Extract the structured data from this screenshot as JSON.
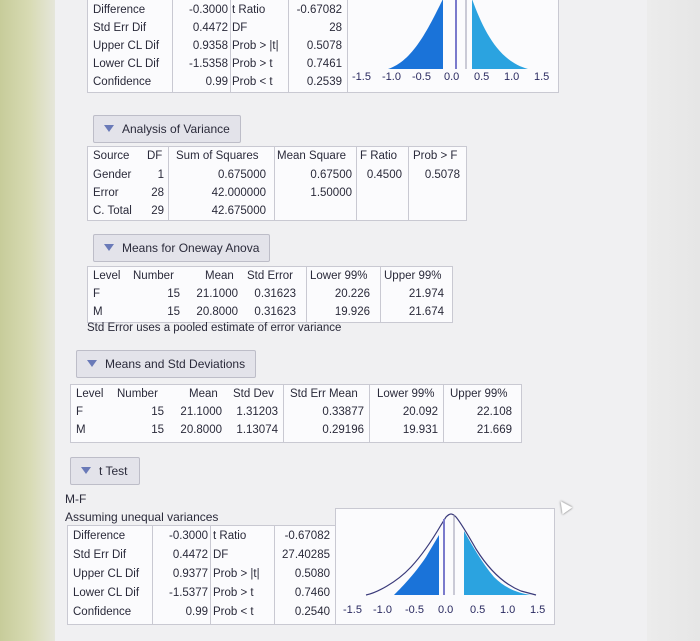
{
  "top_ttest": {
    "rows": [
      {
        "label": "Difference",
        "value": "-0.3000",
        "stat": "t Ratio",
        "stat_value": "-0.67082"
      },
      {
        "label": "Std Err Dif",
        "value": "0.4472",
        "stat": "DF",
        "stat_value": "28"
      },
      {
        "label": "Upper CL Dif",
        "value": "0.9358",
        "stat": "Prob > |t|",
        "stat_value": "0.5078"
      },
      {
        "label": "Lower CL Dif",
        "value": "-1.5358",
        "stat": "Prob > t",
        "stat_value": "0.7461"
      },
      {
        "label": "Confidence",
        "value": "0.99",
        "stat": "Prob < t",
        "stat_value": "0.2539"
      }
    ],
    "axis_ticks": [
      "-1.5",
      "-1.0",
      "-0.5",
      "0.0",
      "0.5",
      "1.0",
      "1.5"
    ]
  },
  "anova": {
    "title": "Analysis of Variance",
    "headers": [
      "Source",
      "DF",
      "Sum of Squares",
      "Mean Square",
      "F Ratio",
      "Prob > F"
    ],
    "rows": [
      [
        "Gender",
        "1",
        "0.675000",
        "0.67500",
        "0.4500",
        "0.5078"
      ],
      [
        "Error",
        "28",
        "42.000000",
        "1.50000",
        "",
        ""
      ],
      [
        "C. Total",
        "29",
        "42.675000",
        "",
        "",
        ""
      ]
    ]
  },
  "means_oneway": {
    "title": "Means for Oneway Anova",
    "headers": [
      "Level",
      "Number",
      "Mean",
      "Std Error",
      "Lower 99%",
      "Upper 99%"
    ],
    "rows": [
      [
        "F",
        "15",
        "21.1000",
        "0.31623",
        "20.226",
        "21.974"
      ],
      [
        "M",
        "15",
        "20.8000",
        "0.31623",
        "19.926",
        "21.674"
      ]
    ],
    "note": "Std Error uses a pooled estimate of error variance"
  },
  "means_std": {
    "title": "Means and Std Deviations",
    "headers": [
      "Level",
      "Number",
      "Mean",
      "Std Dev",
      "Std Err Mean",
      "Lower 99%",
      "Upper 99%"
    ],
    "rows": [
      [
        "F",
        "15",
        "21.1000",
        "1.31203",
        "0.33877",
        "20.092",
        "22.108"
      ],
      [
        "M",
        "15",
        "20.8000",
        "1.13074",
        "0.29196",
        "19.931",
        "21.669"
      ]
    ]
  },
  "ttest": {
    "title": "t Test",
    "comparison": "M-F",
    "assumption": "Assuming unequal variances",
    "rows": [
      {
        "label": "Difference",
        "value": "-0.3000",
        "stat": "t Ratio",
        "stat_value": "-0.67082"
      },
      {
        "label": "Std Err Dif",
        "value": "0.4472",
        "stat": "DF",
        "stat_value": "27.40285"
      },
      {
        "label": "Upper CL Dif",
        "value": "0.9377",
        "stat": "Prob > |t|",
        "stat_value": "0.5080"
      },
      {
        "label": "Lower CL Dif",
        "value": "-1.5377",
        "stat": "Prob > t",
        "stat_value": "0.7460"
      },
      {
        "label": "Confidence",
        "value": "0.99",
        "stat": "Prob < t",
        "stat_value": "0.2540"
      }
    ],
    "axis_ticks": [
      "-1.5",
      "-1.0",
      "-0.5",
      "0.0",
      "0.5",
      "1.0",
      "1.5"
    ]
  },
  "colors": {
    "curve_fill": "#1a73d9",
    "curve_fill_light": "#2ba3e0",
    "marker": "#7a7acc"
  }
}
